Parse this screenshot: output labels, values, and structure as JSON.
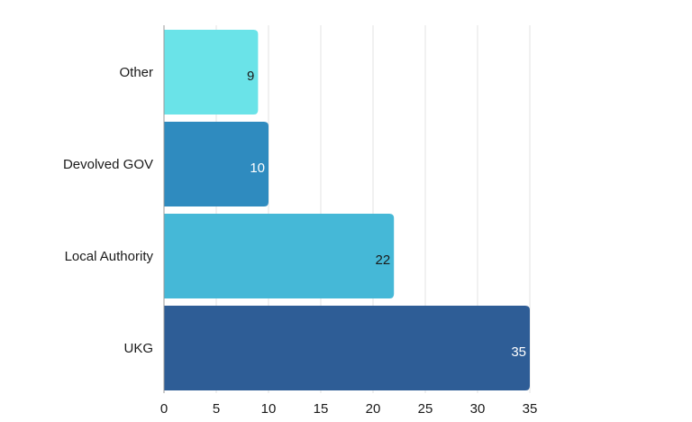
{
  "chart_data": {
    "type": "bar",
    "orientation": "horizontal",
    "title": "",
    "xlabel": "",
    "ylabel": "",
    "categories": [
      "Other",
      "Devolved GOV",
      "Local Authority",
      "UKG"
    ],
    "values": [
      9,
      10,
      22,
      35
    ],
    "value_labels": [
      "9",
      "10",
      "22",
      "35"
    ],
    "bar_colors": [
      "#6ae3e8",
      "#2f8bbf",
      "#45b8d7",
      "#2e5d96"
    ],
    "value_label_colors": [
      "#1a1a1a",
      "#ffffff",
      "#1a1a1a",
      "#ffffff"
    ],
    "xlim": [
      0,
      35
    ],
    "x_ticks": [
      0,
      5,
      10,
      15,
      20,
      25,
      30,
      35
    ],
    "x_tick_labels": [
      "0",
      "5",
      "10",
      "15",
      "20",
      "25",
      "30",
      "35"
    ],
    "grid": true,
    "legend": "none"
  }
}
